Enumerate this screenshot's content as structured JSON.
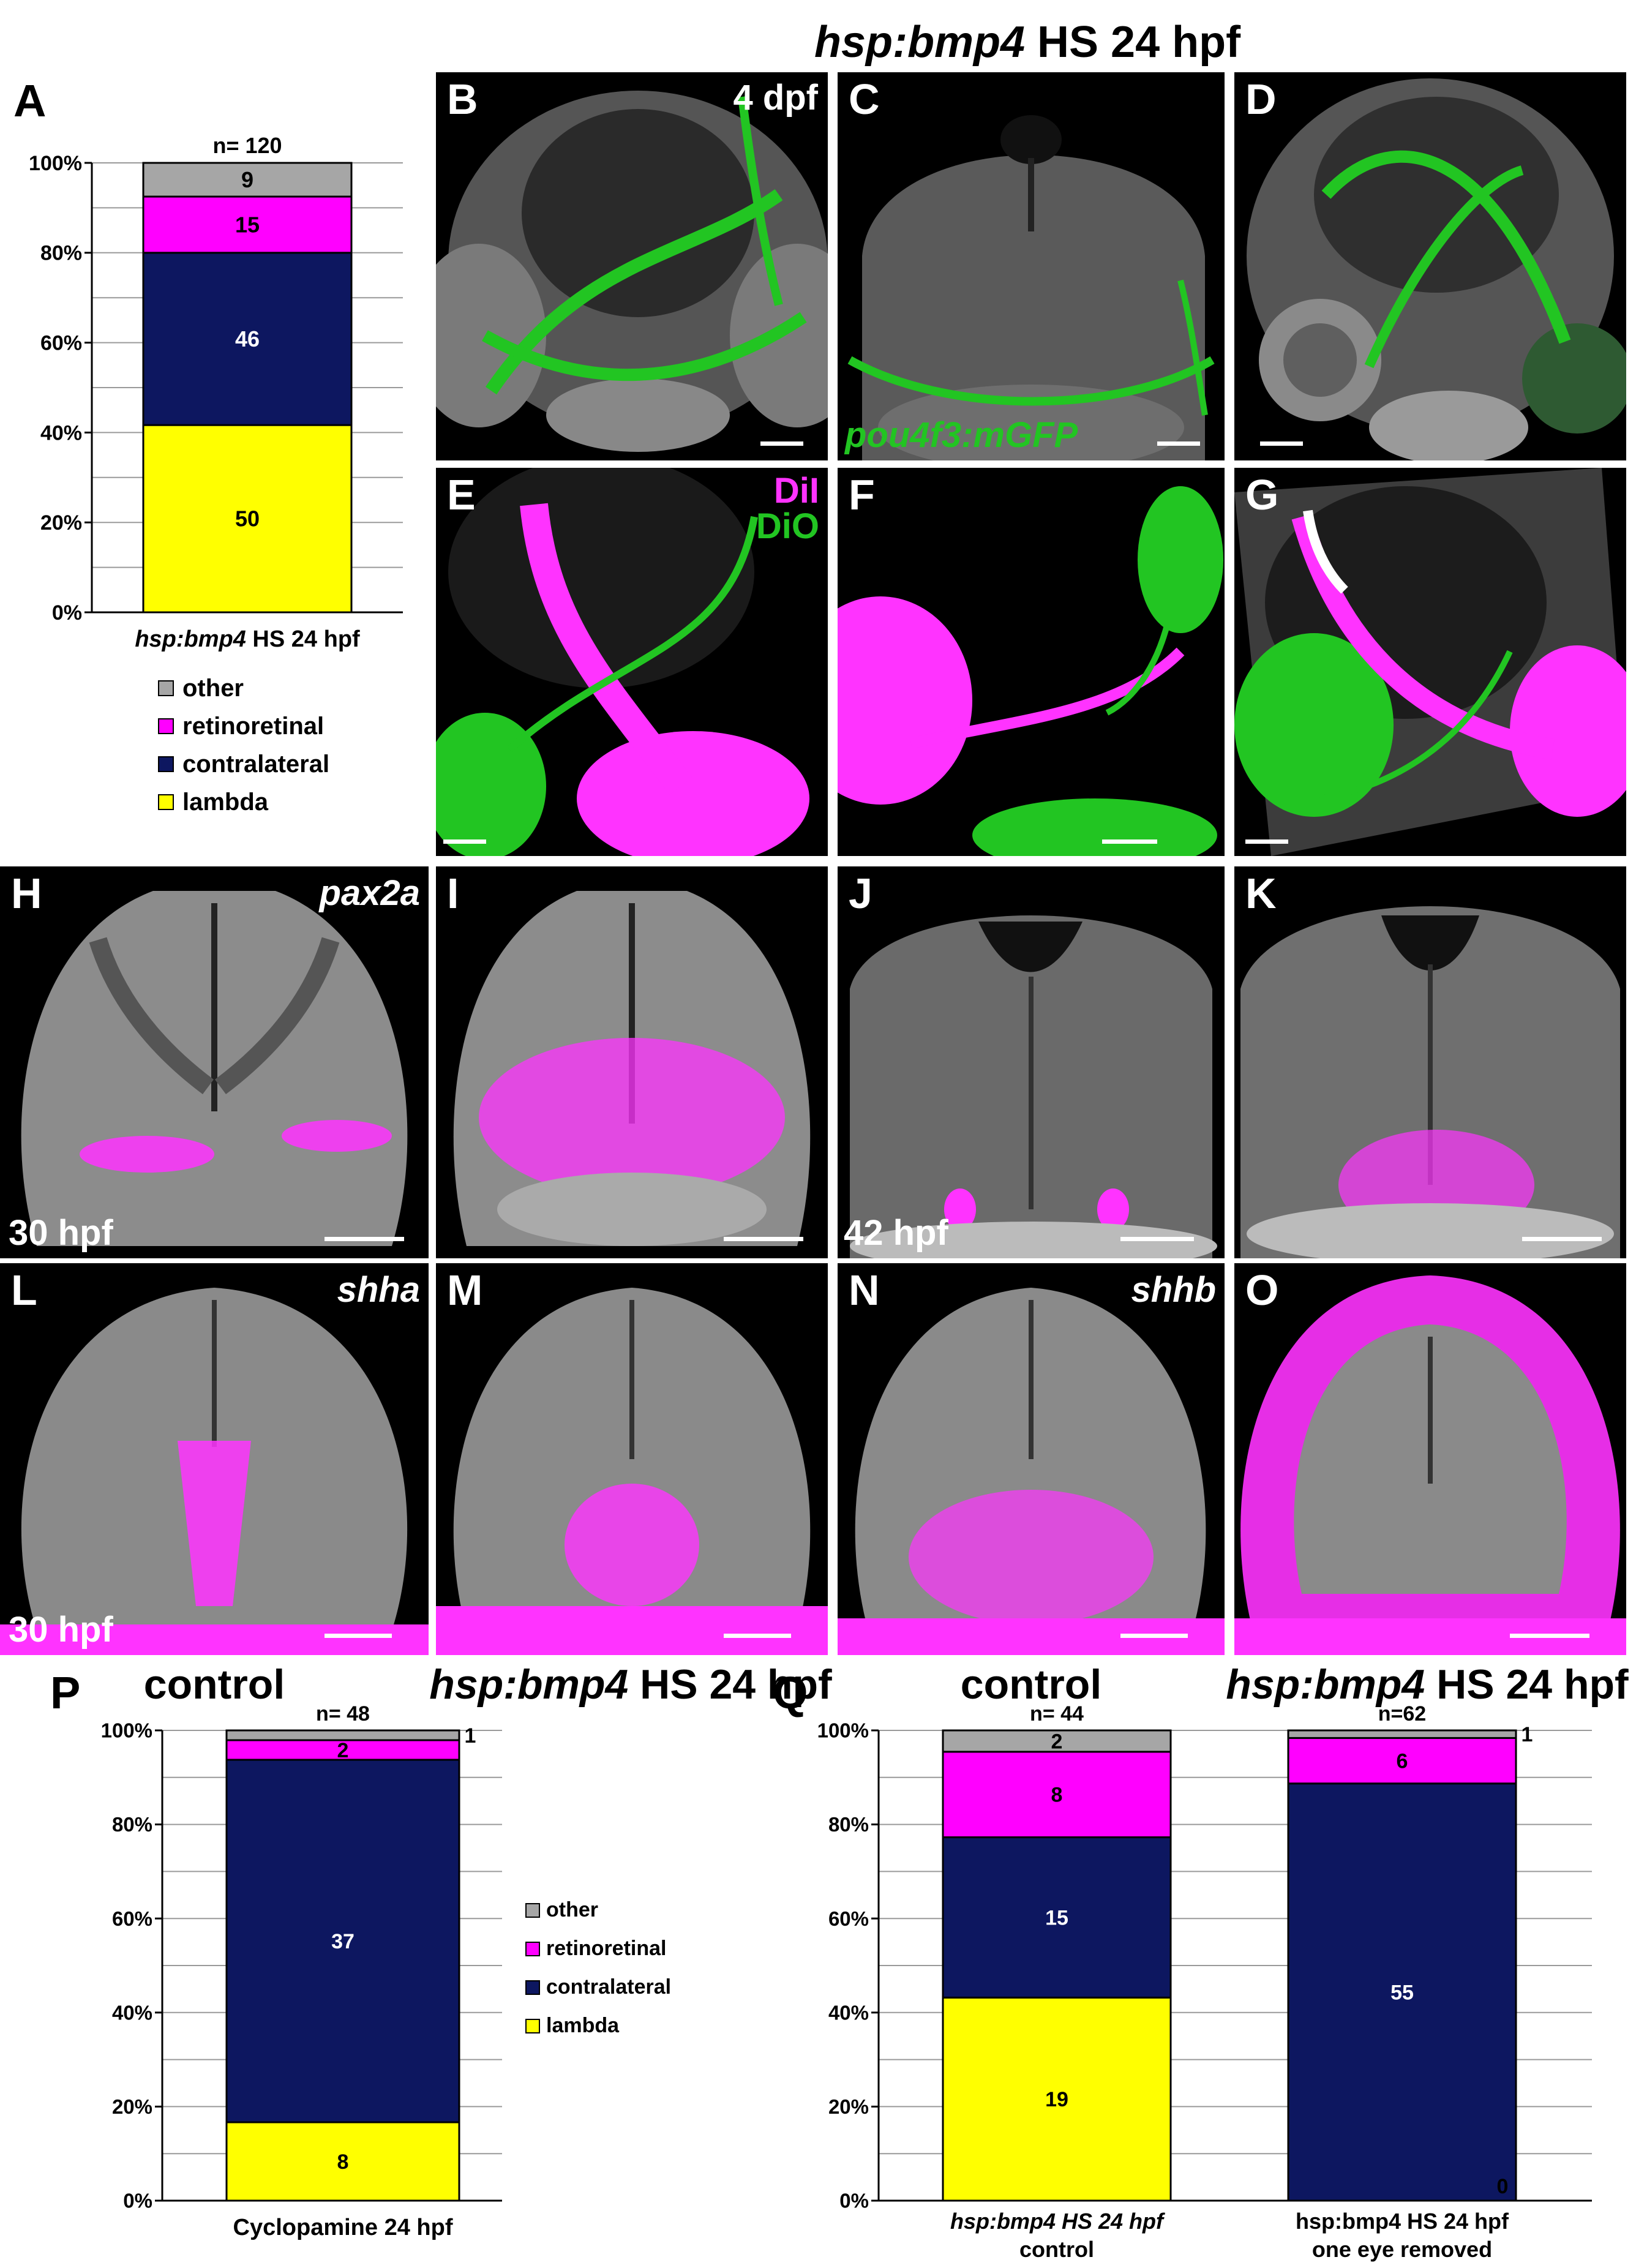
{
  "figure_title": "hsp:bmp4 HS 24 hpf",
  "colors": {
    "other": "#a6a6a6",
    "retinoretinal": "#ff00ff",
    "contralateral": "#0d1760",
    "lambda": "#ffff00",
    "gfp": "#22c522",
    "magenta": "#ff33ff"
  },
  "legend": {
    "other": "other",
    "retinoretinal": "retinoretinal",
    "contralateral": "contralateral",
    "lambda": "lambda"
  },
  "panels": {
    "A": "A",
    "B": "B",
    "C": "C",
    "D": "D",
    "E": "E",
    "F": "F",
    "G": "G",
    "H": "H",
    "I": "I",
    "J": "J",
    "K": "K",
    "L": "L",
    "M": "M",
    "N": "N",
    "O": "O",
    "P": "P",
    "Q": "Q"
  },
  "micro_labels": {
    "b_stage": "4 dpf",
    "c_marker": "pou4f3:mGFP",
    "e_dil": "DiI",
    "e_dio": "DiO",
    "h_gene": "pax2a",
    "h_stage": "30 hpf",
    "j_stage": "42 hpf",
    "l_gene": "shha",
    "l_stage": "30 hpf",
    "n_gene": "shhb"
  },
  "captions": {
    "control_1": "control",
    "bmp4_1_gene": "hsp:bmp4",
    "bmp4_1_rest": " HS 24 hpf",
    "control_2": "control",
    "bmp4_2_gene": "hsp:bmp4",
    "bmp4_2_rest": " HS 24 hpf"
  },
  "chart_data": [
    {
      "panel": "A",
      "type": "bar",
      "stacked": true,
      "ylim": [
        0,
        100
      ],
      "yticks": [
        "0%",
        "20%",
        "40%",
        "60%",
        "80%",
        "100%"
      ],
      "categories_gene": [
        "hsp:bmp4"
      ],
      "categories_rest": [
        " HS 24 hpf"
      ],
      "n_labels": [
        "n= 120"
      ],
      "series": [
        {
          "name": "lambda",
          "counts": [
            50
          ],
          "labels": [
            "50"
          ]
        },
        {
          "name": "contralateral",
          "counts": [
            46
          ],
          "labels": [
            "46"
          ]
        },
        {
          "name": "retinoretinal",
          "counts": [
            15
          ],
          "labels": [
            "15"
          ]
        },
        {
          "name": "other",
          "counts": [
            9
          ],
          "labels": [
            "9"
          ]
        }
      ]
    },
    {
      "panel": "P",
      "type": "bar",
      "stacked": true,
      "ylim": [
        0,
        100
      ],
      "yticks": [
        "0%",
        "20%",
        "40%",
        "60%",
        "80%",
        "100%"
      ],
      "categories": [
        "Cyclopamine 24 hpf"
      ],
      "n_labels": [
        "n= 48"
      ],
      "series": [
        {
          "name": "lambda",
          "counts": [
            8
          ],
          "labels": [
            "8"
          ]
        },
        {
          "name": "contralateral",
          "counts": [
            37
          ],
          "labels": [
            "37"
          ]
        },
        {
          "name": "retinoretinal",
          "counts": [
            2
          ],
          "labels": [
            "2"
          ]
        },
        {
          "name": "other",
          "counts": [
            1
          ],
          "labels": [
            "1"
          ]
        }
      ]
    },
    {
      "panel": "Q",
      "type": "bar",
      "stacked": true,
      "ylim": [
        0,
        100
      ],
      "yticks": [
        "0%",
        "20%",
        "40%",
        "60%",
        "80%",
        "100%"
      ],
      "categories_line1": [
        "hsp:bmp4 HS 24 hpf",
        "hsp:bmp4 HS 24 hpf"
      ],
      "categories_line2": [
        "control",
        "one eye removed"
      ],
      "n_labels": [
        "n= 44",
        "n=62"
      ],
      "series": [
        {
          "name": "lambda",
          "counts": [
            19,
            0
          ],
          "labels": [
            "19",
            "0"
          ]
        },
        {
          "name": "contralateral",
          "counts": [
            15,
            55
          ],
          "labels": [
            "15",
            "55"
          ]
        },
        {
          "name": "retinoretinal",
          "counts": [
            8,
            6
          ],
          "labels": [
            "8",
            "6"
          ]
        },
        {
          "name": "other",
          "counts": [
            2,
            1
          ],
          "labels": [
            "2",
            "1"
          ]
        }
      ]
    }
  ]
}
